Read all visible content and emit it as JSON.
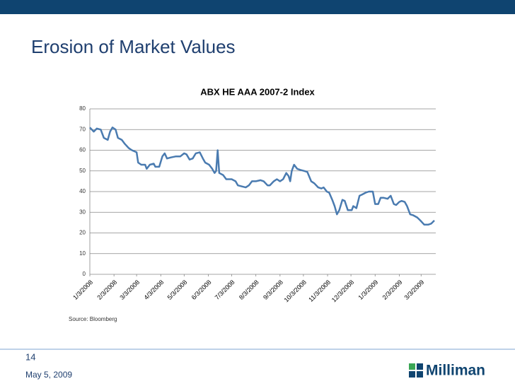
{
  "slide": {
    "title": "Erosion of Market Values",
    "page_number": "14",
    "date": "May 5, 2009",
    "logo_text": "Milliman"
  },
  "chart_data": {
    "type": "line",
    "title": "ABX  HE AAA 2007-2 Index",
    "source": "Source: Bloomberg",
    "color": "#4a7bb0",
    "x": [
      "1/3/2008",
      "1/8/2008",
      "1/12/2008",
      "1/17/2008",
      "1/21/2008",
      "1/26/2008",
      "1/29/2008",
      "2/1/2008",
      "2/5/2008",
      "2/8/2008",
      "2/13/2008",
      "2/17/2008",
      "2/22/2008",
      "2/26/2008",
      "3/3/2008",
      "3/5/2008",
      "3/9/2008",
      "3/14/2008",
      "3/16/2008",
      "3/20/2008",
      "3/25/2008",
      "3/27/2008",
      "4/1/2008",
      "4/5/2008",
      "4/8/2008",
      "4/11/2008",
      "4/16/2008",
      "4/22/2008",
      "4/28/2008",
      "5/3/2008",
      "5/6/2008",
      "5/10/2008",
      "5/14/2008",
      "5/18/2008",
      "5/23/2008",
      "5/27/2008",
      "5/30/2008",
      "6/4/2008",
      "6/8/2008",
      "6/11/2008",
      "6/13/2008",
      "6/15/2008",
      "6/17/2008",
      "6/22/2008",
      "6/26/2008",
      "7/3/2008",
      "7/8/2008",
      "7/11/2008",
      "7/16/2008",
      "7/21/2008",
      "7/25/2008",
      "7/29/2008",
      "8/3/2008",
      "8/9/2008",
      "8/13/2008",
      "8/18/2008",
      "8/21/2008",
      "8/26/2008",
      "8/30/2008",
      "9/3/2008",
      "9/7/2008",
      "9/11/2008",
      "9/14/2008",
      "9/16/2008",
      "9/18/2008",
      "9/21/2008",
      "9/25/2008",
      "9/29/2008",
      "10/4/2008",
      "10/8/2008",
      "10/13/2008",
      "10/17/2008",
      "10/22/2008",
      "10/26/2008",
      "10/29/2008",
      "11/2/2008",
      "11/5/2008",
      "11/9/2008",
      "11/12/2008",
      "11/15/2008",
      "11/18/2008",
      "11/22/2008",
      "11/25/2008",
      "11/29/2008",
      "12/4/2008",
      "12/6/2008",
      "12/10/2008",
      "12/14/2008",
      "12/17/2008",
      "12/22/2008",
      "12/26/2008",
      "12/31/2008",
      "1/3/2009",
      "1/7/2009",
      "1/10/2009",
      "1/14/2009",
      "1/19/2009",
      "1/23/2009",
      "1/27/2009",
      "1/30/2009",
      "2/3/2009",
      "2/6/2009",
      "2/10/2009",
      "2/13/2009",
      "2/17/2009",
      "2/21/2009",
      "2/26/2009",
      "3/2/2009",
      "3/7/2009",
      "3/12/2009",
      "3/16/2009",
      "3/20/2009"
    ],
    "values": [
      71,
      69,
      70.5,
      70,
      66,
      65,
      69,
      71,
      70,
      66,
      65,
      63,
      61,
      60,
      59,
      54,
      53,
      53,
      51,
      53,
      53.5,
      52,
      52,
      57,
      58.5,
      56,
      56.5,
      57,
      57,
      58.5,
      58,
      55.5,
      56,
      58.5,
      59,
      56,
      54,
      53,
      51,
      49,
      50,
      60,
      49,
      48,
      46,
      46,
      45,
      43,
      42.5,
      42,
      43,
      45,
      45,
      45.5,
      45,
      43,
      43,
      45,
      46,
      45,
      46,
      49,
      47.5,
      45,
      50,
      53,
      51,
      50.5,
      50,
      49.5,
      45,
      44,
      42,
      41.5,
      42,
      40,
      39.5,
      36,
      33,
      29,
      31,
      36,
      35.5,
      31,
      31,
      33,
      32,
      38,
      38.5,
      39.5,
      40,
      40,
      34,
      34,
      37,
      37,
      36.5,
      38,
      34,
      33.5,
      35,
      35.5,
      35,
      33,
      29,
      28.5,
      27.5,
      26,
      24,
      24,
      24.5,
      26
    ],
    "xlim": [
      "1/3/2008",
      "3/20/2009"
    ],
    "xticks": [
      "1/3/2008",
      "2/3/2008",
      "3/3/2008",
      "4/3/2008",
      "5/3/2008",
      "6/3/2008",
      "7/3/2008",
      "8/3/2008",
      "9/3/2008",
      "10/3/2008",
      "11/3/2008",
      "12/3/2008",
      "1/3/2009",
      "2/3/2009",
      "3/3/2009"
    ],
    "ylim": [
      0,
      80
    ],
    "yticks": [
      0,
      10,
      20,
      30,
      40,
      50,
      60,
      70,
      80
    ],
    "grid": true
  }
}
